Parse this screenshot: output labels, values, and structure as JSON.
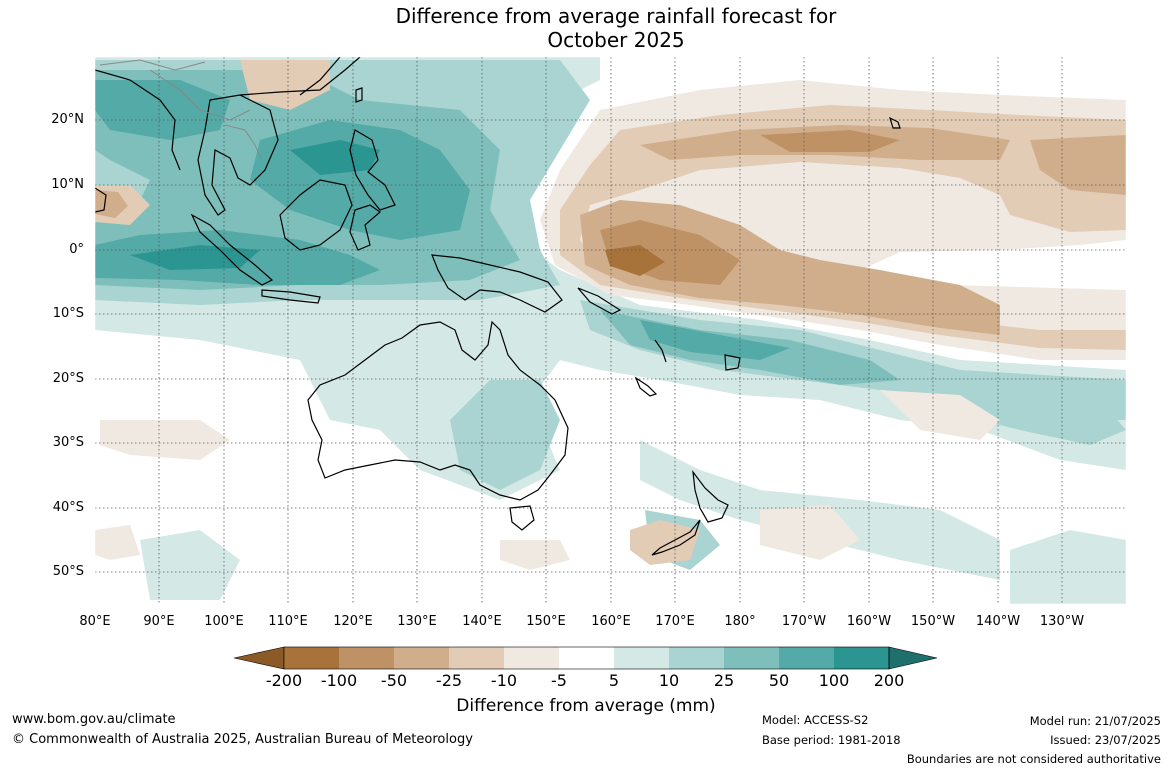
{
  "title_line1": "Difference from average rainfall forecast for",
  "title_line2": "October 2025",
  "lat_labels": [
    "20°N",
    "10°N",
    "0°",
    "10°S",
    "20°S",
    "30°S",
    "40°S",
    "50°S"
  ],
  "lon_labels": [
    "80°E",
    "90°E",
    "100°E",
    "110°E",
    "120°E",
    "130°E",
    "140°E",
    "150°E",
    "160°E",
    "170°E",
    "180°",
    "170°W",
    "160°W",
    "150°W",
    "140°W",
    "130°W"
  ],
  "colorbar": {
    "labels": [
      "-200",
      "-100",
      "-50",
      "-25",
      "-10",
      "-5",
      "5",
      "10",
      "25",
      "50",
      "100",
      "200"
    ],
    "colors": [
      "#a8733a",
      "#bf9266",
      "#d0ae8c",
      "#e2ccb5",
      "#f0e9e1",
      "#ffffff",
      "#d4e8e6",
      "#a9d4d1",
      "#7fbfbb",
      "#53aaa6",
      "#2b9592"
    ],
    "extend_low": "#8b5a26",
    "extend_high": "#1f6f6d",
    "title": "Difference from average (mm)"
  },
  "footer": {
    "url": "www.bom.gov.au/climate",
    "copyright": "© Commonwealth of Australia 2025, Australian Bureau of Meteorology",
    "model": "Model: ACCESS-S2",
    "base_period": "Base period: 1981-2018",
    "model_run": "Model run: 21/07/2025",
    "issued": "Issued: 23/07/2025",
    "disclaimer": "Boundaries are not considered authoritative"
  }
}
